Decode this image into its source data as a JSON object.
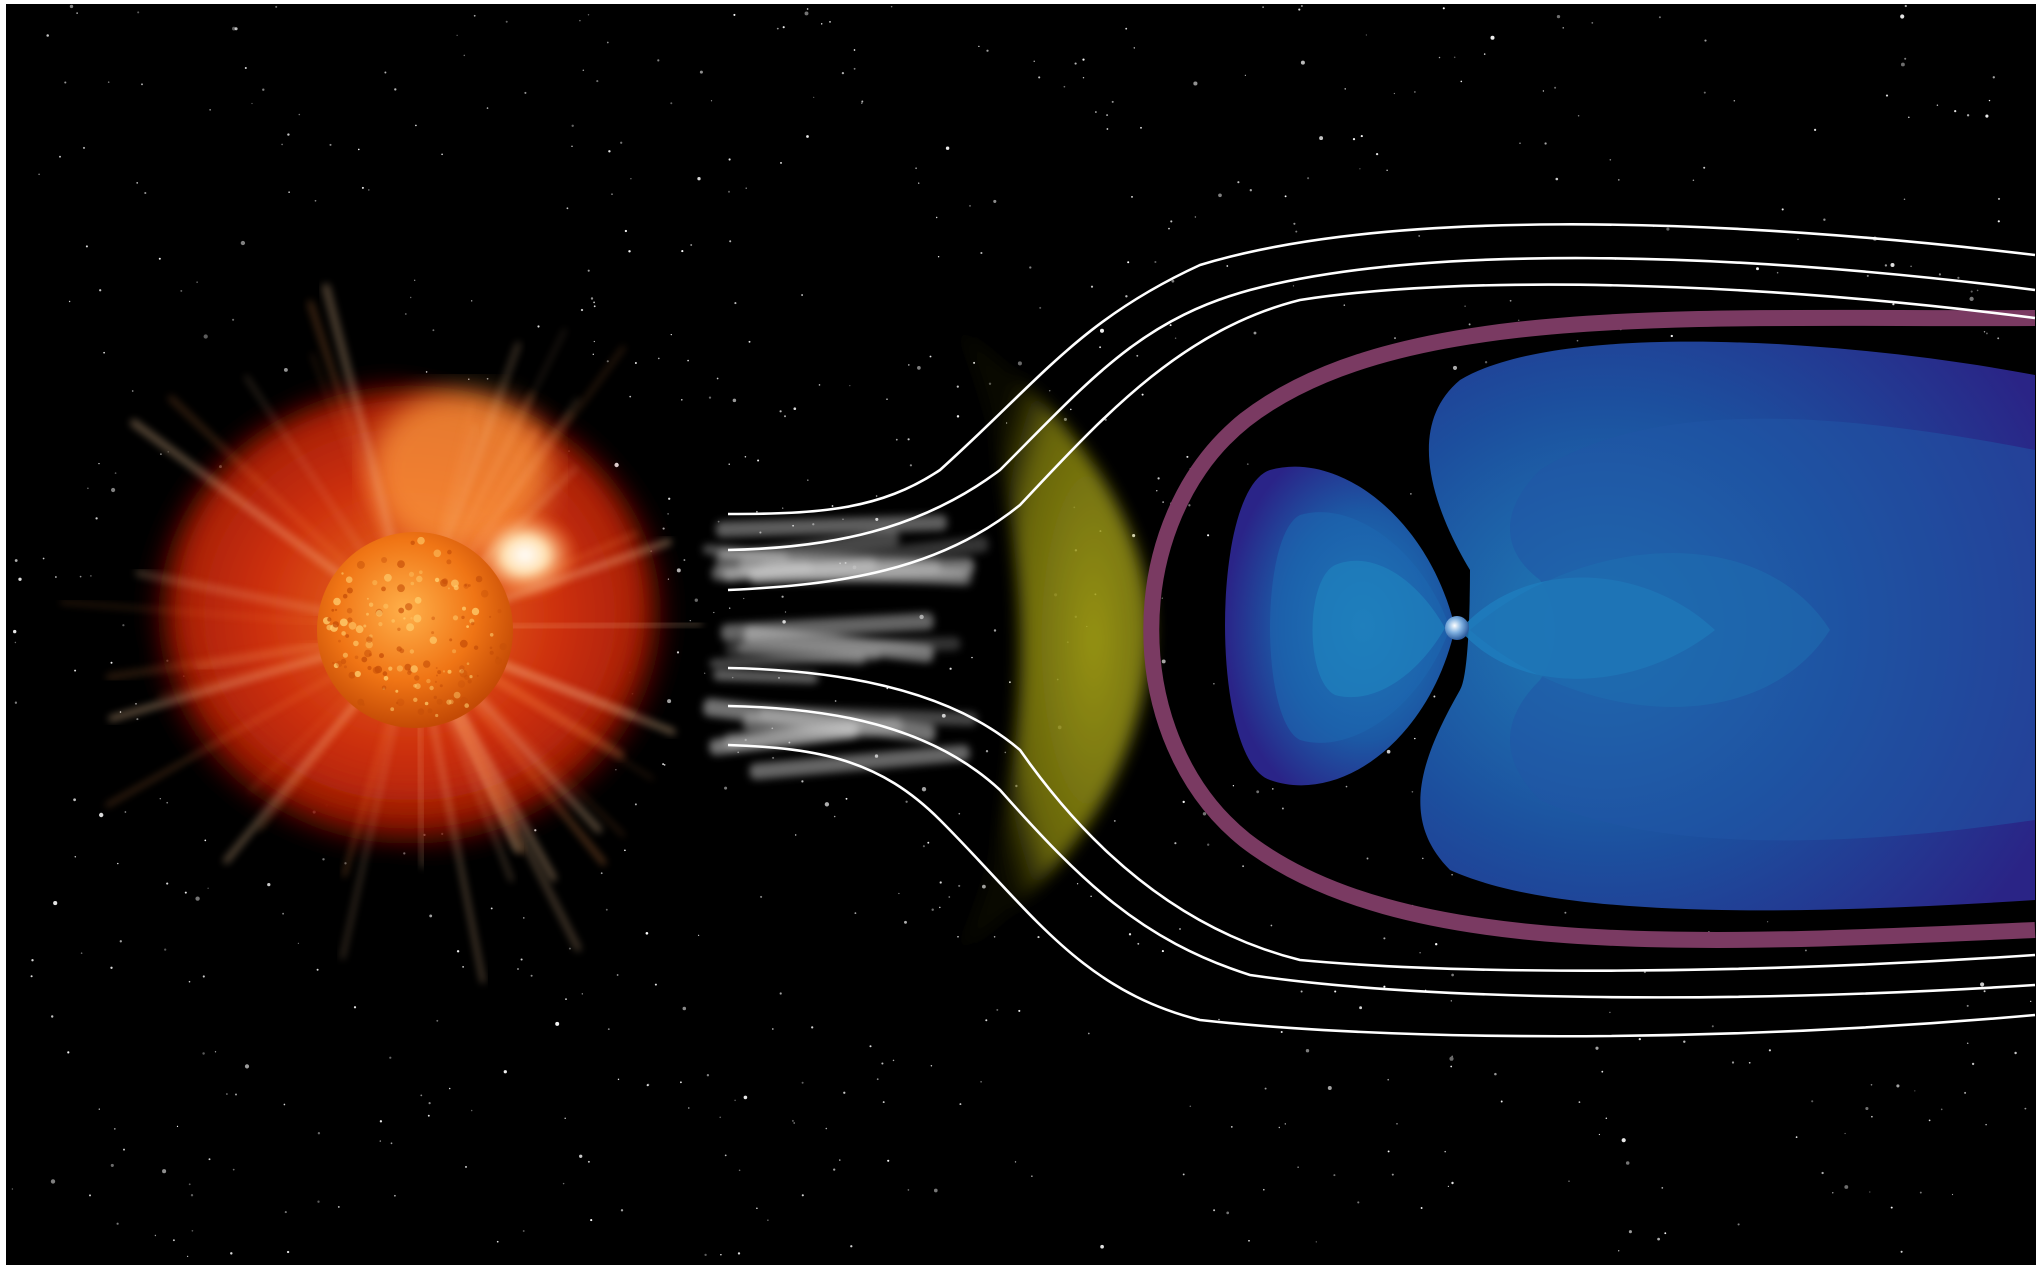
{
  "colors": {
    "space": "#000000",
    "border": "#ffffff",
    "sun_core": "#f27a1a",
    "corona": "#c8260a",
    "bow_shock": "#8c8a12",
    "magnetopause": "#7a3a62",
    "magnetosphere_outer": "#2a2a8a",
    "magnetosphere_inner": "#1e6fae",
    "field_lines": "#ffffff",
    "solar_wind": "#bdbdbd"
  },
  "icons": {
    "sun": "sun-icon",
    "earth": "earth-icon"
  }
}
